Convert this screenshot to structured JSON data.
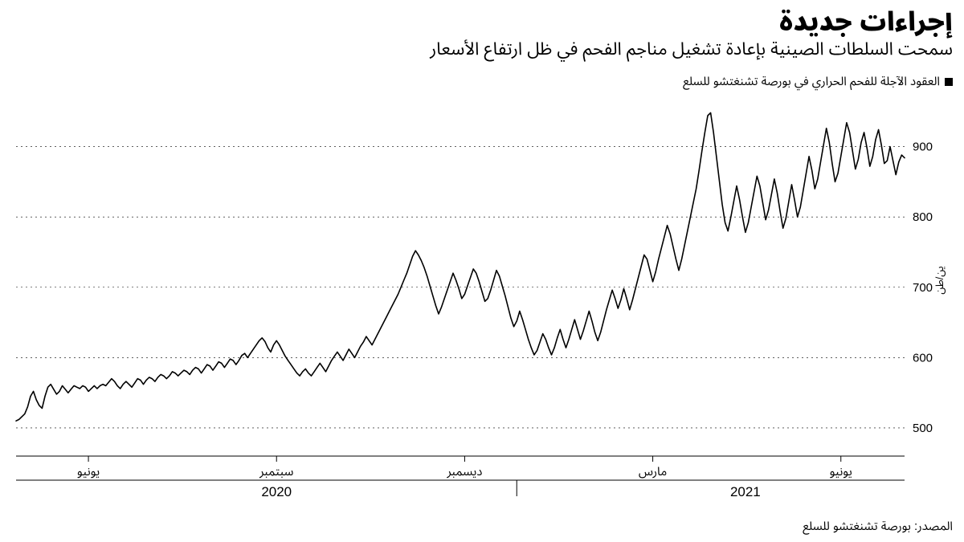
{
  "title": "إجراءات جديدة",
  "subtitle": "سمحت السلطات الصينية بإعادة تشغيل مناجم الفحم في ظل ارتفاع الأسعار",
  "legend_text": "العقود الآجلة للفحم الحراري في بورصة تشنغتشو للسلع",
  "source": "المصدر: بورصة تشنغتشو للسلع",
  "chart": {
    "type": "line",
    "background_color": "#ffffff",
    "grid_color": "#999999",
    "line_color": "#000000",
    "line_width": 1.6,
    "y_axis": {
      "label": "ين/طن",
      "side": "right",
      "ticks": [
        500,
        600,
        700,
        800,
        900
      ],
      "ylim": [
        460,
        960
      ],
      "label_fontsize": 13,
      "tick_fontsize": 15
    },
    "x_axis": {
      "domain_index": [
        0,
        307
      ],
      "month_ticks": [
        {
          "i": 25,
          "label": "يونيو"
        },
        {
          "i": 90,
          "label": "سبتمبر"
        },
        {
          "i": 155,
          "label": "ديسمبر"
        },
        {
          "i": 220,
          "label": "مارس"
        },
        {
          "i": 285,
          "label": "يونيو"
        }
      ],
      "year_ticks": [
        {
          "i": 90,
          "label": "2020"
        },
        {
          "i": 252,
          "label": "2021"
        }
      ],
      "year_divider_i": 173,
      "tick_fontsize": 15,
      "year_fontsize": 17
    },
    "values": [
      510,
      512,
      516,
      520,
      530,
      545,
      552,
      540,
      532,
      528,
      545,
      558,
      562,
      555,
      548,
      552,
      560,
      555,
      550,
      555,
      560,
      558,
      556,
      560,
      558,
      552,
      556,
      560,
      556,
      560,
      562,
      560,
      565,
      570,
      566,
      560,
      556,
      562,
      566,
      562,
      558,
      564,
      570,
      568,
      562,
      568,
      572,
      570,
      566,
      572,
      576,
      574,
      570,
      574,
      580,
      578,
      574,
      578,
      582,
      580,
      576,
      582,
      586,
      584,
      578,
      584,
      590,
      588,
      582,
      588,
      594,
      592,
      586,
      592,
      598,
      596,
      590,
      596,
      603,
      606,
      600,
      606,
      612,
      618,
      624,
      628,
      623,
      614,
      608,
      618,
      624,
      618,
      610,
      602,
      596,
      590,
      584,
      578,
      574,
      580,
      584,
      578,
      574,
      580,
      586,
      592,
      586,
      580,
      588,
      596,
      602,
      608,
      602,
      596,
      604,
      612,
      606,
      600,
      608,
      616,
      622,
      630,
      624,
      618,
      626,
      634,
      642,
      650,
      658,
      666,
      674,
      682,
      690,
      700,
      710,
      720,
      732,
      744,
      752,
      746,
      738,
      728,
      716,
      702,
      688,
      674,
      662,
      672,
      684,
      696,
      708,
      720,
      710,
      698,
      684,
      690,
      702,
      714,
      726,
      720,
      708,
      694,
      680,
      684,
      696,
      710,
      724,
      716,
      702,
      688,
      672,
      656,
      644,
      652,
      666,
      654,
      640,
      626,
      614,
      604,
      610,
      622,
      634,
      626,
      614,
      604,
      614,
      628,
      640,
      626,
      614,
      626,
      640,
      654,
      640,
      626,
      638,
      652,
      666,
      652,
      636,
      624,
      636,
      652,
      668,
      682,
      696,
      684,
      670,
      682,
      698,
      684,
      668,
      682,
      698,
      714,
      730,
      746,
      740,
      724,
      708,
      722,
      740,
      756,
      772,
      788,
      776,
      758,
      740,
      724,
      740,
      760,
      780,
      800,
      820,
      840,
      866,
      894,
      920,
      944,
      948,
      920,
      886,
      852,
      818,
      792,
      780,
      800,
      822,
      844,
      824,
      800,
      778,
      792,
      814,
      836,
      858,
      844,
      820,
      796,
      810,
      832,
      854,
      834,
      808,
      784,
      798,
      822,
      846,
      824,
      800,
      814,
      838,
      862,
      886,
      866,
      840,
      854,
      878,
      902,
      926,
      906,
      876,
      850,
      862,
      886,
      910,
      934,
      920,
      894,
      868,
      882,
      906,
      920,
      898,
      872,
      886,
      910,
      924,
      902,
      876,
      880,
      900,
      880,
      860,
      878,
      888,
      884
    ]
  }
}
